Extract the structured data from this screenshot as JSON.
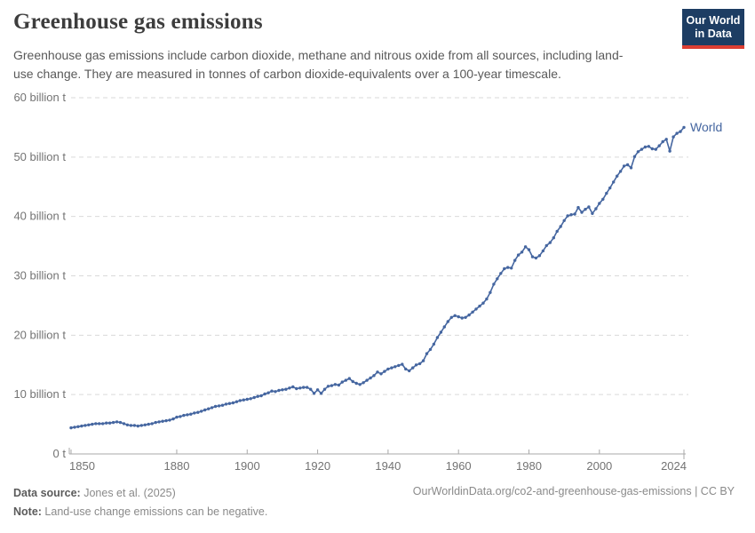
{
  "header": {
    "title": "Greenhouse gas emissions",
    "subtitle": "Greenhouse gas emissions include carbon dioxide, methane and nitrous oxide from all sources, including land-use change. They are measured in tonnes of carbon dioxide-equivalents over a 100-year timescale.",
    "logo": {
      "line1": "Our World",
      "line2": "in Data",
      "bg_color": "#1d3d63",
      "bar_color": "#dc3e32"
    }
  },
  "chart_data": {
    "type": "line",
    "title": "Greenhouse gas emissions",
    "xlabel": "",
    "ylabel": "",
    "xlim": [
      1850,
      2024
    ],
    "ylim": [
      0,
      60
    ],
    "grid": true,
    "legend_position": "end-of-line",
    "y_ticks": [
      {
        "value": 0,
        "label": "0 t"
      },
      {
        "value": 10,
        "label": "10 billion t"
      },
      {
        "value": 20,
        "label": "20 billion t"
      },
      {
        "value": 30,
        "label": "30 billion t"
      },
      {
        "value": 40,
        "label": "40 billion t"
      },
      {
        "value": 50,
        "label": "50 billion t"
      },
      {
        "value": 60,
        "label": "60 billion t"
      }
    ],
    "x_ticks": [
      1850,
      1880,
      1900,
      1920,
      1940,
      1960,
      1980,
      2000,
      2024
    ],
    "series": [
      {
        "name": "World",
        "color": "#4566a0",
        "start_year": 1850,
        "end_year": 2024,
        "unit": "billion tonnes CO2-equivalents",
        "values": [
          4.4,
          4.5,
          4.6,
          4.7,
          4.8,
          4.9,
          5.0,
          5.1,
          5.1,
          5.1,
          5.2,
          5.2,
          5.3,
          5.4,
          5.3,
          5.1,
          4.9,
          4.8,
          4.8,
          4.7,
          4.8,
          4.9,
          5.0,
          5.1,
          5.3,
          5.4,
          5.5,
          5.6,
          5.7,
          5.9,
          6.2,
          6.3,
          6.5,
          6.6,
          6.7,
          6.9,
          7.0,
          7.2,
          7.4,
          7.6,
          7.8,
          8.0,
          8.1,
          8.2,
          8.4,
          8.5,
          8.6,
          8.8,
          9.0,
          9.1,
          9.2,
          9.3,
          9.5,
          9.7,
          9.8,
          10.1,
          10.3,
          10.6,
          10.5,
          10.7,
          10.8,
          10.9,
          11.1,
          11.3,
          11.0,
          11.1,
          11.2,
          11.2,
          10.9,
          10.2,
          10.8,
          10.2,
          10.9,
          11.4,
          11.5,
          11.7,
          11.6,
          12.1,
          12.4,
          12.7,
          12.2,
          11.9,
          11.7,
          12.0,
          12.4,
          12.8,
          13.2,
          13.8,
          13.5,
          13.9,
          14.3,
          14.5,
          14.7,
          14.9,
          15.1,
          14.3,
          14.0,
          14.5,
          15.0,
          15.2,
          15.7,
          16.9,
          17.6,
          18.5,
          19.6,
          20.5,
          21.4,
          22.3,
          23.0,
          23.3,
          23.1,
          22.9,
          23.0,
          23.4,
          23.9,
          24.4,
          24.9,
          25.4,
          26.1,
          27.2,
          28.6,
          29.5,
          30.4,
          31.2,
          31.4,
          31.3,
          32.6,
          33.5,
          34.0,
          34.9,
          34.4,
          33.2,
          33.0,
          33.4,
          34.2,
          35.1,
          35.6,
          36.4,
          37.5,
          38.3,
          39.3,
          40.1,
          40.3,
          40.4,
          41.5,
          40.7,
          41.2,
          41.6,
          40.5,
          41.3,
          42.2,
          42.9,
          43.9,
          44.8,
          45.8,
          46.8,
          47.6,
          48.5,
          48.7,
          48.2,
          50.1,
          50.9,
          51.3,
          51.7,
          51.8,
          51.4,
          51.3,
          51.9,
          52.6,
          53.0,
          51.0,
          53.4,
          54.0,
          54.3,
          55.0
        ]
      }
    ],
    "colors": {
      "gridline": "#d9d9d9",
      "axis": "#a8a8a8",
      "tick_label": "#737373"
    }
  },
  "footer": {
    "data_source_label": "Data source:",
    "data_source_value": " Jones et al. (2025)",
    "note_label": "Note:",
    "note_value": " Land-use change emissions can be negative.",
    "url_text": "OurWorldinData.org/co2-and-greenhouse-gas-emissions | CC BY"
  }
}
